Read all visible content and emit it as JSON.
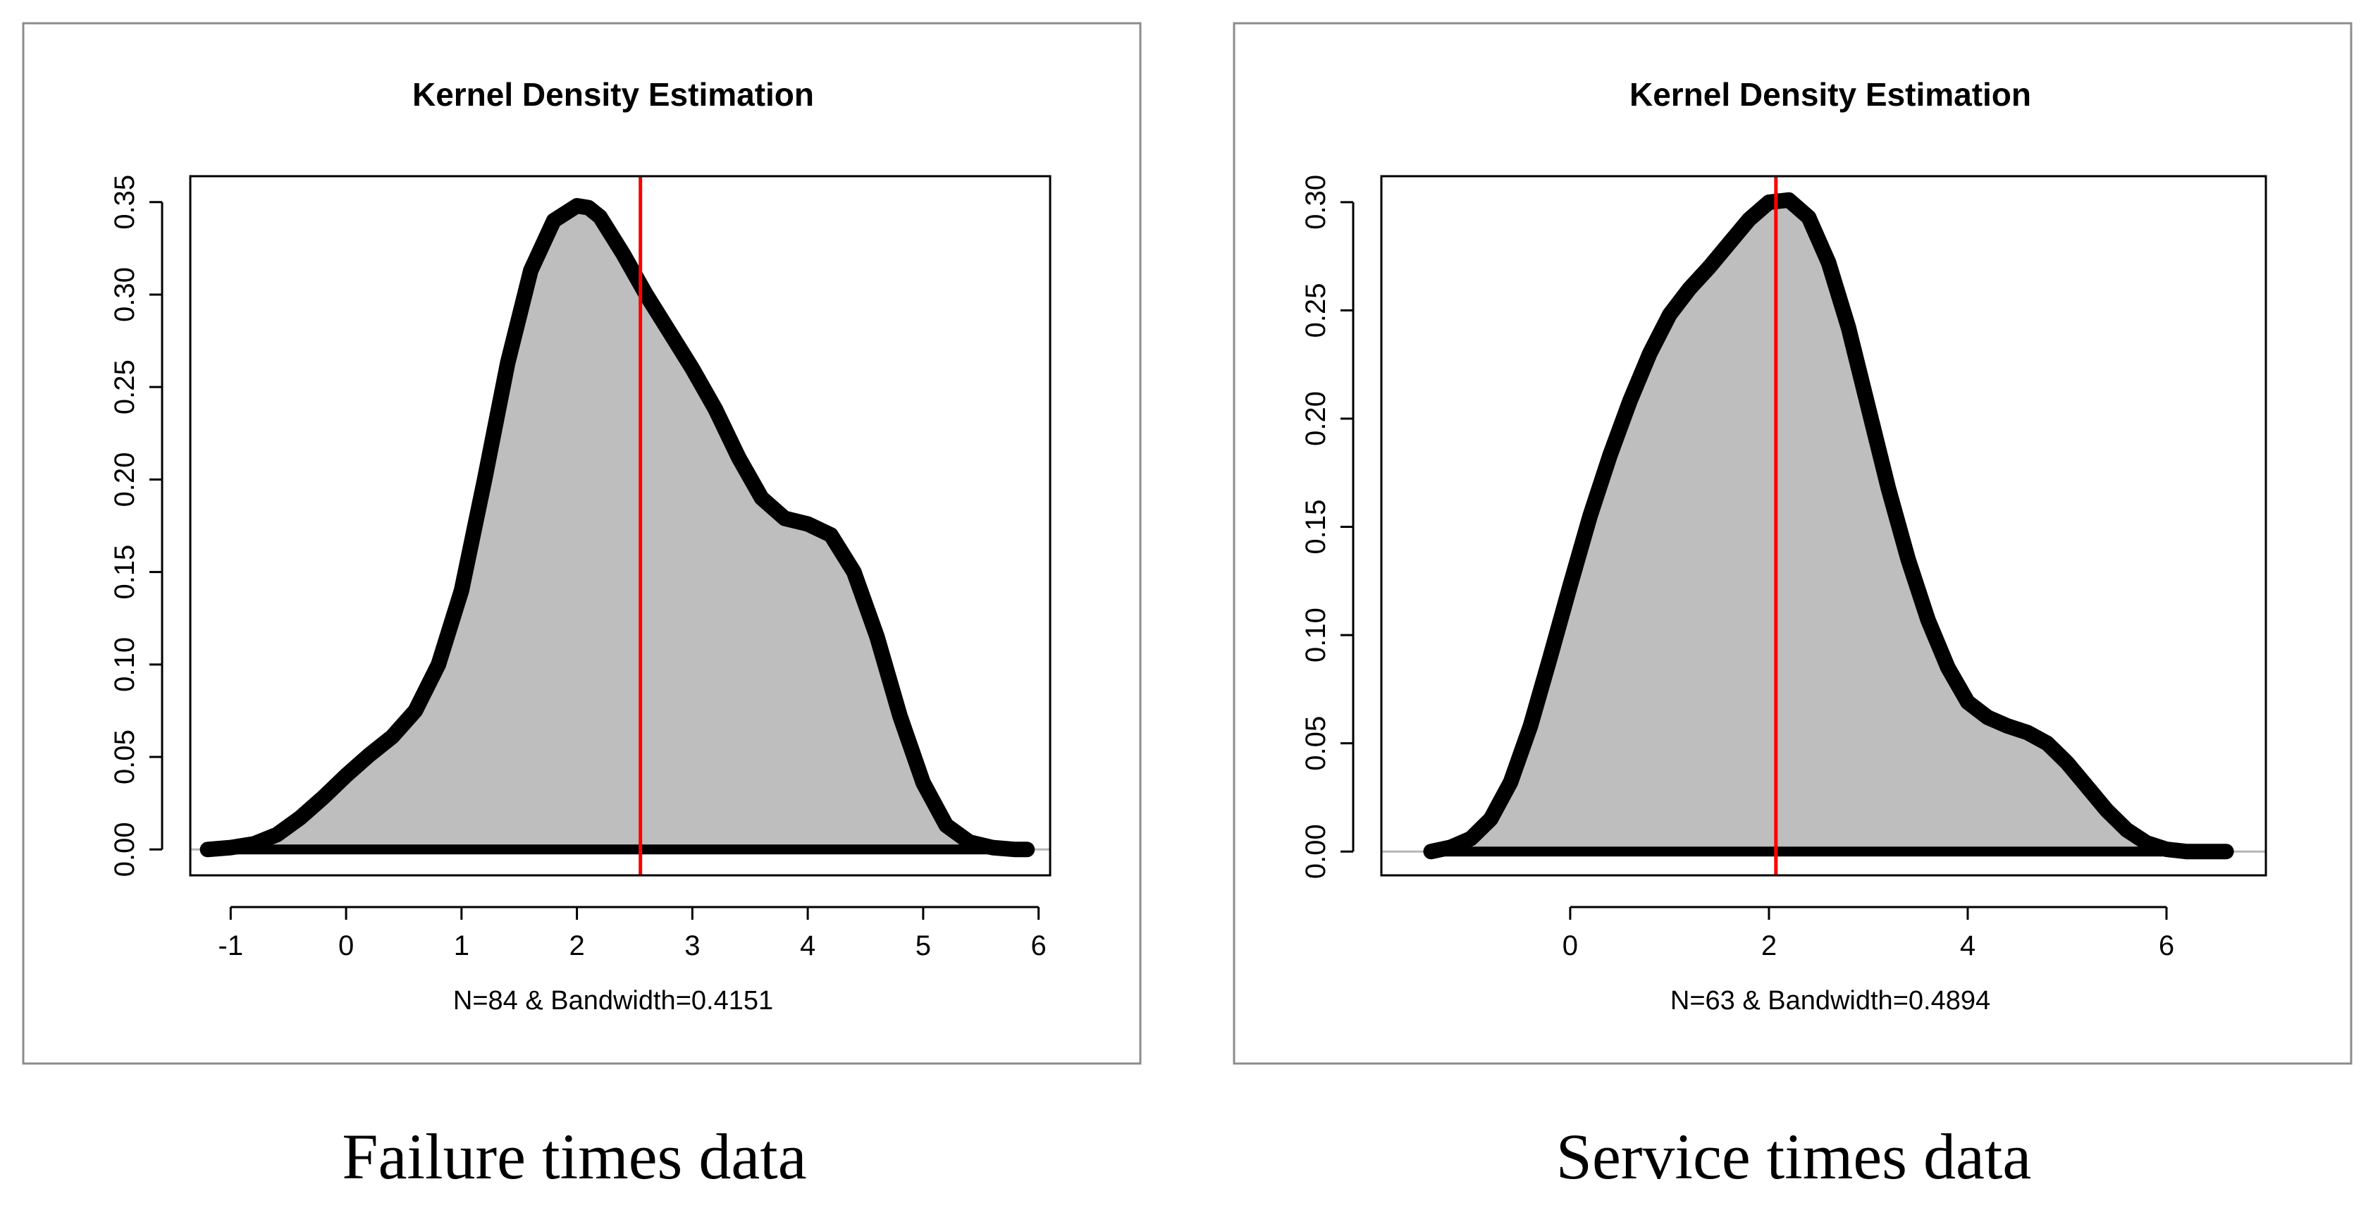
{
  "page": {
    "background": "#ffffff"
  },
  "colors": {
    "fill": "#bebebe",
    "line": "#000000",
    "marker": "#ff0000"
  },
  "chart_data": [
    {
      "type": "area",
      "title": "Kernel Density Estimation",
      "xlabel": "N=84 & Bandwidth=0.4151",
      "ylabel": "",
      "caption": "Failure times data",
      "xlim": [
        -1.35,
        6.1
      ],
      "ylim": [
        -0.014,
        0.364
      ],
      "xticks": [
        -1,
        0,
        1,
        2,
        3,
        4,
        5,
        6
      ],
      "xtick_labels": [
        "-1",
        "0",
        "1",
        "2",
        "3",
        "4",
        "5",
        "6"
      ],
      "yticks": [
        0,
        0.05,
        0.1,
        0.15,
        0.2,
        0.25,
        0.3,
        0.35
      ],
      "ytick_labels": [
        "0.00",
        "0.05",
        "0.10",
        "0.15",
        "0.20",
        "0.25",
        "0.30",
        "0.35"
      ],
      "vertical_line": 2.55,
      "series": [
        {
          "name": "density",
          "x": [
            -1.2,
            -1.0,
            -0.8,
            -0.6,
            -0.4,
            -0.2,
            0.0,
            0.2,
            0.4,
            0.6,
            0.8,
            1.0,
            1.2,
            1.4,
            1.6,
            1.8,
            2.0,
            2.1,
            2.2,
            2.4,
            2.6,
            2.8,
            3.0,
            3.2,
            3.4,
            3.6,
            3.8,
            4.0,
            4.2,
            4.4,
            4.6,
            4.8,
            5.0,
            5.2,
            5.4,
            5.6,
            5.8,
            5.9
          ],
          "y": [
            0.0,
            0.001,
            0.003,
            0.008,
            0.017,
            0.028,
            0.04,
            0.051,
            0.061,
            0.075,
            0.1,
            0.14,
            0.2,
            0.263,
            0.313,
            0.34,
            0.348,
            0.347,
            0.342,
            0.322,
            0.3,
            0.28,
            0.26,
            0.238,
            0.212,
            0.19,
            0.179,
            0.176,
            0.17,
            0.15,
            0.115,
            0.072,
            0.036,
            0.013,
            0.004,
            0.001,
            0.0,
            0.0
          ]
        }
      ]
    },
    {
      "type": "area",
      "title": "Kernel Density Estimation",
      "xlabel": "N=63 & Bandwidth=0.4894",
      "ylabel": "",
      "caption": "Service times data",
      "xlim": [
        -1.9,
        7.0
      ],
      "ylim": [
        -0.011,
        0.312
      ],
      "xticks": [
        0,
        2,
        4,
        6
      ],
      "xtick_labels": [
        "0",
        "2",
        "4",
        "6"
      ],
      "yticks": [
        0,
        0.05,
        0.1,
        0.15,
        0.2,
        0.25,
        0.3
      ],
      "ytick_labels": [
        "0.00",
        "0.05",
        "0.10",
        "0.15",
        "0.20",
        "0.25",
        "0.30"
      ],
      "vertical_line": 2.07,
      "series": [
        {
          "name": "density",
          "x": [
            -1.4,
            -1.2,
            -1.0,
            -0.8,
            -0.6,
            -0.4,
            -0.2,
            0.0,
            0.2,
            0.4,
            0.6,
            0.8,
            1.0,
            1.2,
            1.4,
            1.6,
            1.8,
            2.0,
            2.2,
            2.4,
            2.6,
            2.8,
            3.0,
            3.2,
            3.4,
            3.6,
            3.8,
            4.0,
            4.2,
            4.4,
            4.6,
            4.8,
            5.0,
            5.2,
            5.4,
            5.6,
            5.8,
            6.0,
            6.2,
            6.4,
            6.6
          ],
          "y": [
            0.0,
            0.002,
            0.006,
            0.015,
            0.032,
            0.058,
            0.09,
            0.123,
            0.155,
            0.183,
            0.208,
            0.23,
            0.248,
            0.26,
            0.27,
            0.281,
            0.292,
            0.3,
            0.301,
            0.293,
            0.272,
            0.242,
            0.205,
            0.168,
            0.135,
            0.107,
            0.085,
            0.069,
            0.062,
            0.058,
            0.055,
            0.05,
            0.041,
            0.03,
            0.019,
            0.01,
            0.004,
            0.001,
            0.0,
            0.0,
            0.0
          ]
        }
      ]
    }
  ]
}
